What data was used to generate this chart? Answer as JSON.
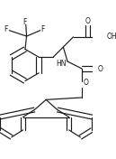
{
  "background": "#ffffff",
  "line_color": "#1a1a1a",
  "lw": 0.85,
  "figsize": [
    1.29,
    1.76
  ],
  "dpi": 100,
  "xlim": [
    0,
    129
  ],
  "ylim": [
    0,
    176
  ]
}
